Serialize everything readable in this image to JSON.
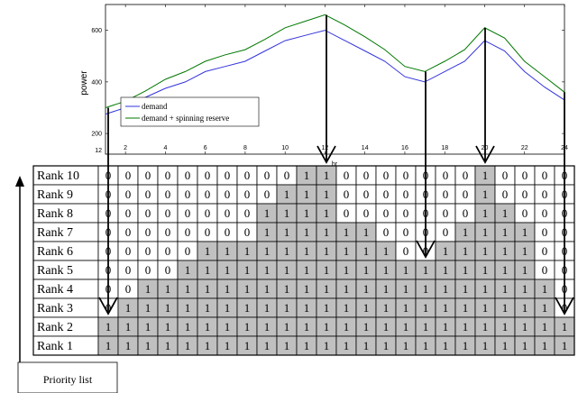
{
  "chart_data": {
    "type": "line",
    "xlabel": "hr",
    "ylabel": "power",
    "xlim": [
      1,
      24
    ],
    "ylim": [
      120,
      700
    ],
    "x_ticks": [
      2,
      4,
      6,
      8,
      10,
      12,
      14,
      16,
      18,
      20,
      22,
      24
    ],
    "y_ticks": [
      200,
      400,
      600
    ],
    "y_bottom_label": "12",
    "grid": false,
    "legend_position": "bottom-left",
    "x": [
      1,
      2,
      3,
      4,
      5,
      6,
      7,
      8,
      9,
      10,
      11,
      12,
      13,
      14,
      15,
      16,
      17,
      18,
      19,
      20,
      21,
      22,
      23,
      24
    ],
    "series": [
      {
        "name": "demand",
        "color": "#3333dd",
        "values": [
          275,
          300,
          340,
          375,
          400,
          440,
          460,
          480,
          520,
          560,
          580,
          600,
          560,
          520,
          480,
          420,
          400,
          440,
          480,
          560,
          520,
          440,
          380,
          330
        ]
      },
      {
        "name": "demand + spinning reserve",
        "color": "#007700",
        "values": [
          300,
          325,
          365,
          410,
          440,
          480,
          505,
          525,
          565,
          610,
          635,
          660,
          620,
          575,
          525,
          460,
          440,
          480,
          525,
          610,
          570,
          480,
          420,
          360
        ]
      }
    ]
  },
  "priority_table": {
    "rows": [
      {
        "label": "Rank 10",
        "values": [
          0,
          0,
          0,
          0,
          0,
          0,
          0,
          0,
          0,
          0,
          1,
          1,
          0,
          0,
          0,
          0,
          0,
          0,
          0,
          1,
          0,
          0,
          0,
          0
        ]
      },
      {
        "label": "Rank 9",
        "values": [
          0,
          0,
          0,
          0,
          0,
          0,
          0,
          0,
          0,
          1,
          1,
          1,
          0,
          0,
          0,
          0,
          0,
          0,
          0,
          1,
          0,
          0,
          0,
          0
        ]
      },
      {
        "label": "Rank 8",
        "values": [
          0,
          0,
          0,
          0,
          0,
          0,
          0,
          0,
          1,
          1,
          1,
          1,
          0,
          0,
          0,
          0,
          0,
          0,
          0,
          1,
          1,
          0,
          0,
          0
        ]
      },
      {
        "label": "Rank 7",
        "values": [
          0,
          0,
          0,
          0,
          0,
          0,
          0,
          0,
          1,
          1,
          1,
          1,
          1,
          1,
          0,
          0,
          0,
          0,
          1,
          1,
          1,
          1,
          0,
          0
        ]
      },
      {
        "label": "Rank 6",
        "values": [
          0,
          0,
          0,
          0,
          0,
          1,
          1,
          1,
          1,
          1,
          1,
          1,
          1,
          1,
          1,
          0,
          0,
          1,
          1,
          1,
          1,
          1,
          0,
          0
        ]
      },
      {
        "label": "Rank 5",
        "values": [
          0,
          0,
          0,
          0,
          1,
          1,
          1,
          1,
          1,
          1,
          1,
          1,
          1,
          1,
          1,
          1,
          1,
          1,
          1,
          1,
          1,
          1,
          0,
          0
        ]
      },
      {
        "label": "Rank 4",
        "values": [
          0,
          0,
          1,
          1,
          1,
          1,
          1,
          1,
          1,
          1,
          1,
          1,
          1,
          1,
          1,
          1,
          1,
          1,
          1,
          1,
          1,
          1,
          1,
          0
        ]
      },
      {
        "label": "Rank 3",
        "values": [
          0,
          1,
          1,
          1,
          1,
          1,
          1,
          1,
          1,
          1,
          1,
          1,
          1,
          1,
          1,
          1,
          1,
          1,
          1,
          1,
          1,
          1,
          1,
          0
        ]
      },
      {
        "label": "Rank 2",
        "values": [
          1,
          1,
          1,
          1,
          1,
          1,
          1,
          1,
          1,
          1,
          1,
          1,
          1,
          1,
          1,
          1,
          1,
          1,
          1,
          1,
          1,
          1,
          1,
          1
        ]
      },
      {
        "label": "Rank 1",
        "values": [
          1,
          1,
          1,
          1,
          1,
          1,
          1,
          1,
          1,
          1,
          1,
          1,
          1,
          1,
          1,
          1,
          1,
          1,
          1,
          1,
          1,
          1,
          1,
          1
        ]
      }
    ],
    "on_color": "#c0c0c0",
    "off_color": "#ffffff"
  },
  "arrow_hours": [
    1,
    12,
    17,
    20,
    24
  ],
  "caption": "Priority list"
}
